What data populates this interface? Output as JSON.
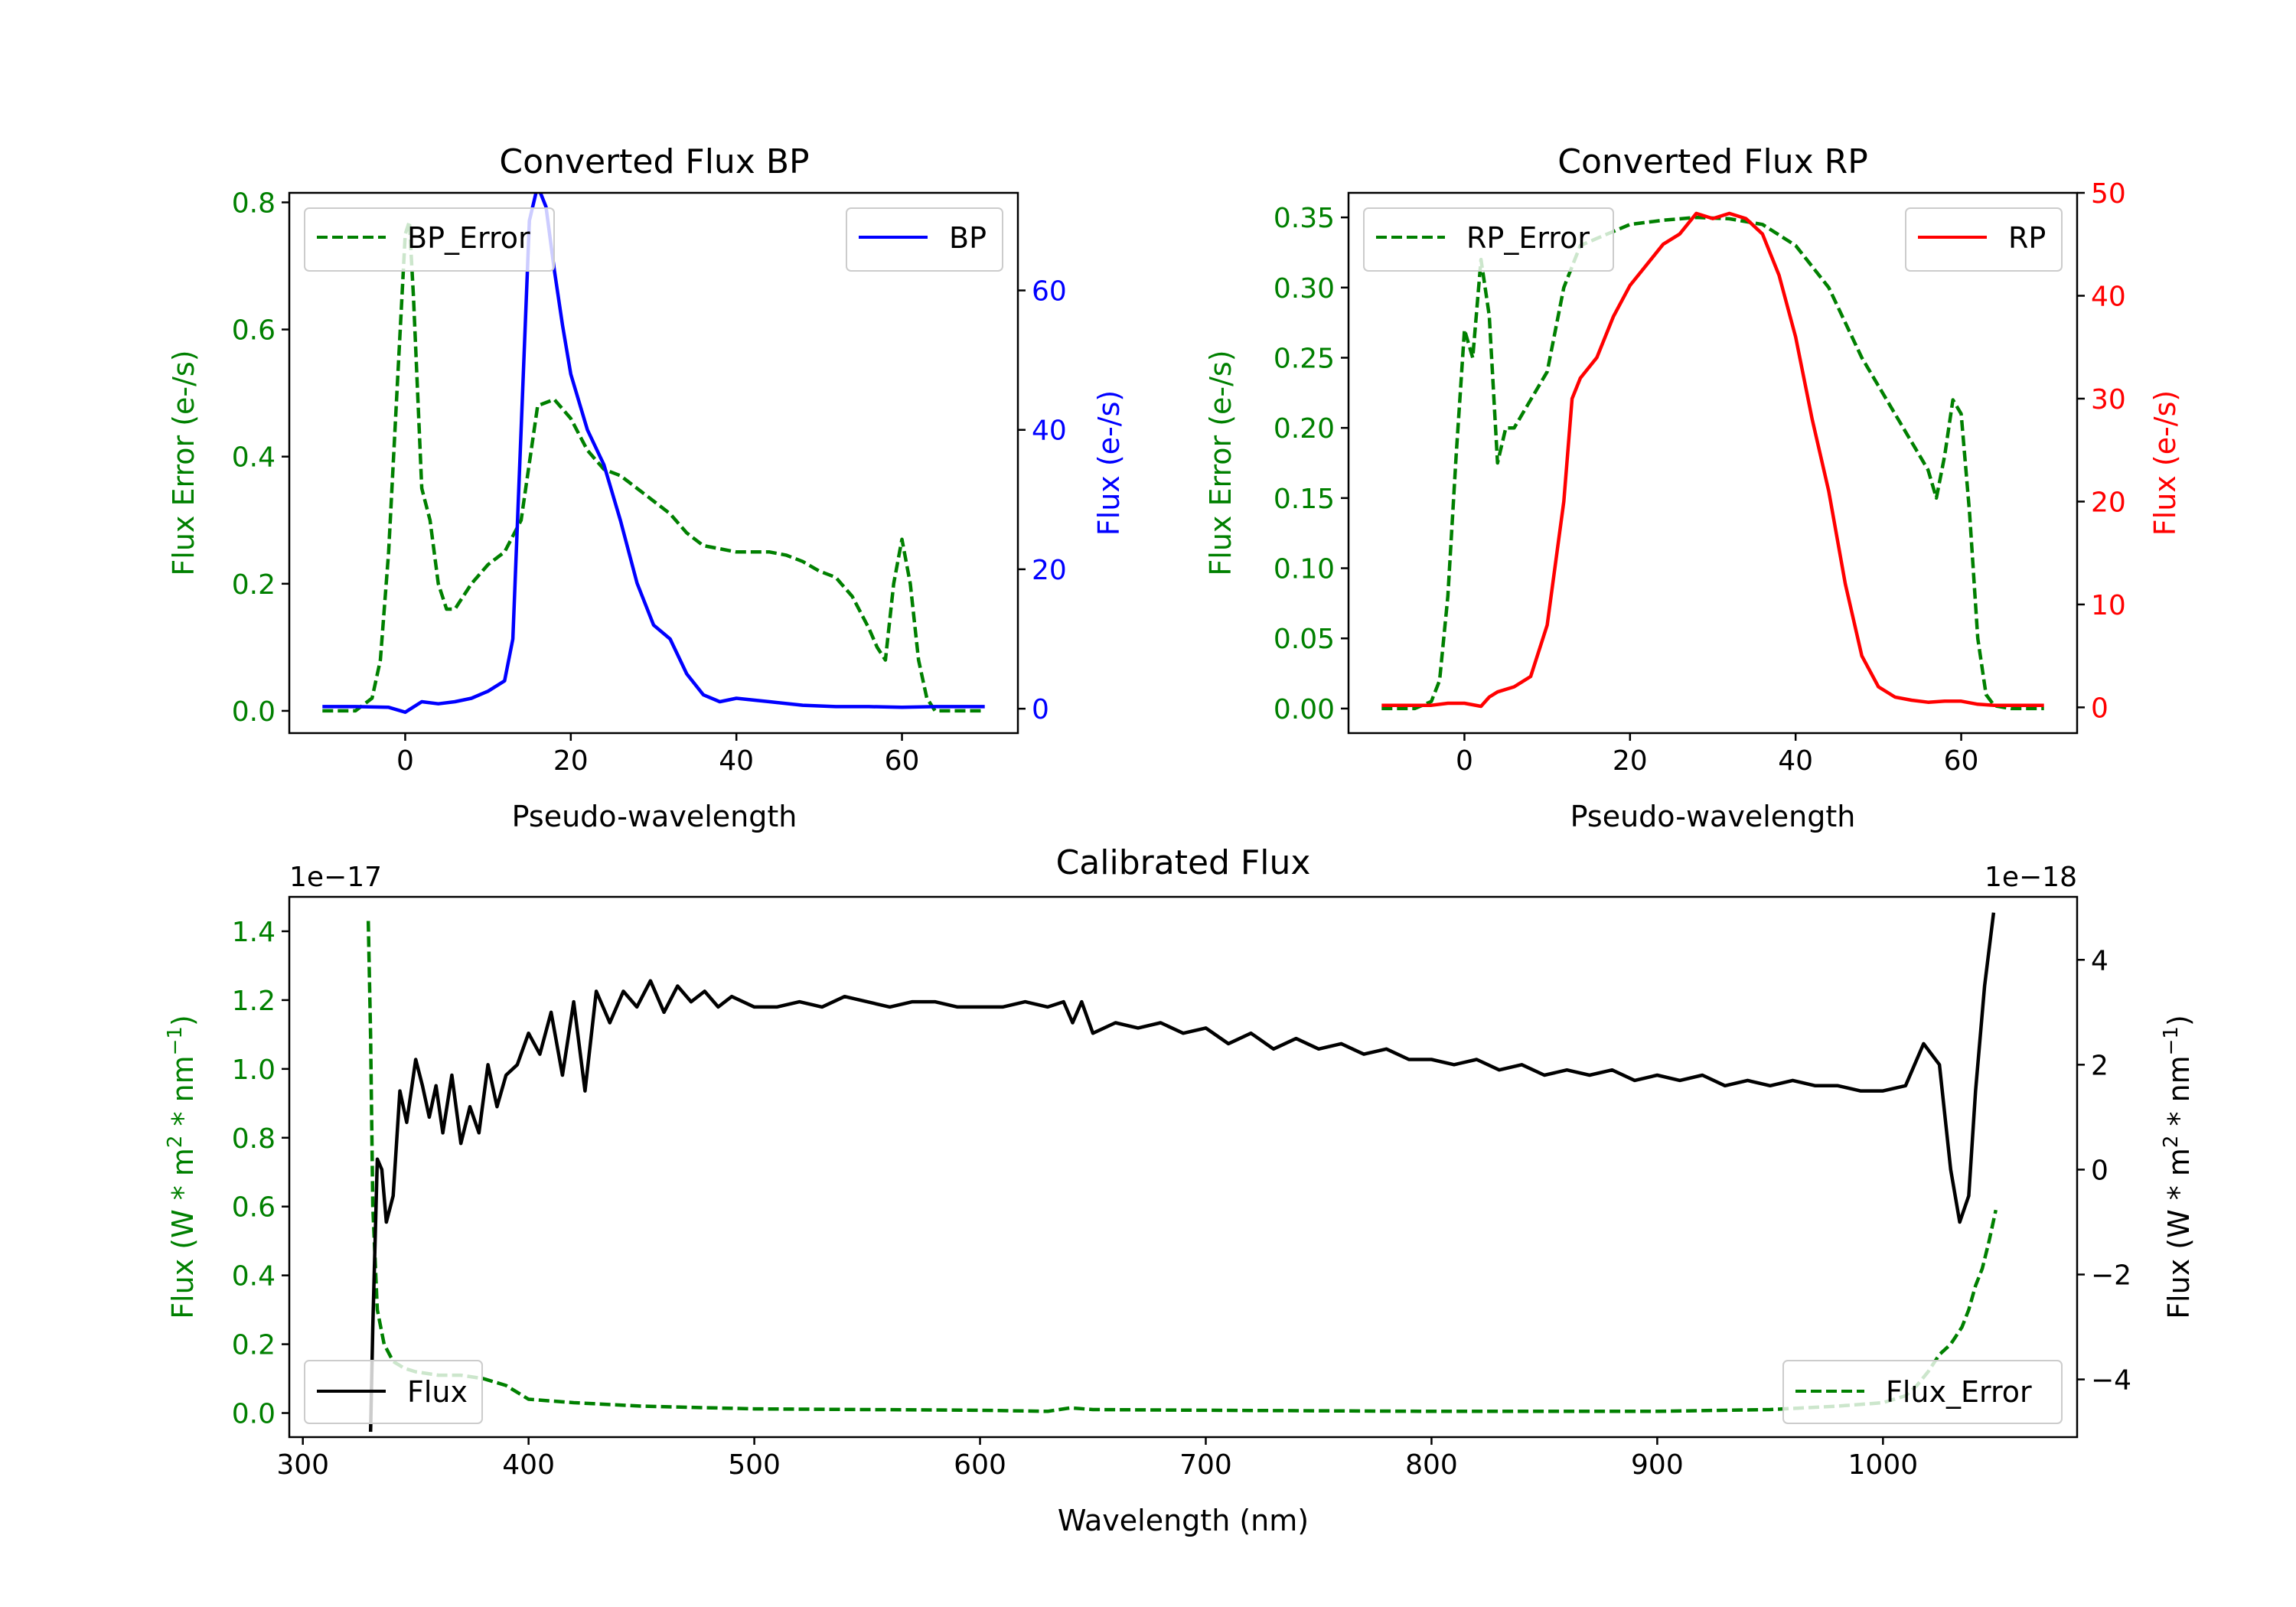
{
  "colors": {
    "error": "#008000",
    "bp": "#0000ff",
    "rp": "#ff0000",
    "flux": "#000000",
    "axis": "#000000"
  },
  "chart_data": [
    {
      "id": "bp",
      "type": "line",
      "title": "Converted Flux BP",
      "xlabel": "Pseudo-wavelength",
      "xlim": [
        -14,
        74
      ],
      "xticks": [
        0,
        20,
        40,
        60
      ],
      "left_axis": {
        "label": "Flux Error (e-/s)",
        "ylim": [
          -0.035,
          0.815
        ],
        "ticks": [
          "0.0",
          "0.2",
          "0.4",
          "0.6",
          "0.8"
        ],
        "tick_values": [
          0.0,
          0.2,
          0.4,
          0.6,
          0.8
        ]
      },
      "right_axis": {
        "label": "Flux (e-/s)",
        "ylim": [
          -3.5,
          74
        ],
        "ticks": [
          "0",
          "20",
          "40",
          "60"
        ],
        "tick_values": [
          0,
          20,
          40,
          60
        ]
      },
      "series": [
        {
          "name": "BP_Error",
          "axis": "left",
          "style": "dashed",
          "color_key": "error",
          "x": [
            -10,
            -6,
            -4,
            -3,
            -2,
            -1,
            0,
            0.5,
            1,
            2,
            3,
            4,
            5,
            6,
            8,
            10,
            12,
            14,
            16,
            18,
            20,
            22,
            24,
            26,
            28,
            30,
            32,
            34,
            36,
            38,
            40,
            42,
            44,
            46,
            48,
            50,
            52,
            54,
            56,
            57,
            58,
            59,
            60,
            61,
            62,
            63,
            64,
            66,
            68,
            70
          ],
          "y": [
            0.0,
            0.0,
            0.02,
            0.08,
            0.25,
            0.5,
            0.75,
            0.77,
            0.65,
            0.35,
            0.3,
            0.2,
            0.16,
            0.16,
            0.2,
            0.23,
            0.25,
            0.3,
            0.48,
            0.49,
            0.46,
            0.41,
            0.38,
            0.37,
            0.35,
            0.33,
            0.31,
            0.28,
            0.26,
            0.255,
            0.25,
            0.25,
            0.25,
            0.245,
            0.235,
            0.22,
            0.21,
            0.18,
            0.13,
            0.1,
            0.08,
            0.2,
            0.27,
            0.2,
            0.08,
            0.02,
            0.0,
            0.0,
            0.0,
            0.0
          ]
        },
        {
          "name": "BP",
          "axis": "right",
          "style": "solid",
          "color_key": "bp",
          "x": [
            -10,
            -6,
            -2,
            0,
            2,
            4,
            6,
            8,
            10,
            12,
            13,
            14,
            15,
            16,
            17,
            18,
            19,
            20,
            22,
            24,
            26,
            28,
            30,
            32,
            34,
            36,
            38,
            40,
            44,
            48,
            52,
            56,
            60,
            64,
            70
          ],
          "y": [
            0.3,
            0.3,
            0.2,
            -0.5,
            1.0,
            0.7,
            1.0,
            1.5,
            2.5,
            4.0,
            10.0,
            40.0,
            70.0,
            75.0,
            72.0,
            63.0,
            55.0,
            48.0,
            40.0,
            35.0,
            27.0,
            18.0,
            12.0,
            10.0,
            5.0,
            2.0,
            1.0,
            1.5,
            1.0,
            0.5,
            0.3,
            0.3,
            0.2,
            0.3,
            0.3
          ]
        }
      ],
      "legends": [
        {
          "labels": [
            "BP_Error"
          ],
          "series": [
            "BP_Error"
          ],
          "placement": "upper-left"
        },
        {
          "labels": [
            "BP"
          ],
          "series": [
            "BP"
          ],
          "placement": "upper-right"
        }
      ]
    },
    {
      "id": "rp",
      "type": "line",
      "title": "Converted Flux RP",
      "xlabel": "Pseudo-wavelength",
      "xlim": [
        -14,
        74
      ],
      "xticks": [
        0,
        20,
        40,
        60
      ],
      "left_axis": {
        "label": "Flux Error (e-/s)",
        "ylim": [
          -0.0175,
          0.3675
        ],
        "ticks": [
          "0.00",
          "0.05",
          "0.10",
          "0.15",
          "0.20",
          "0.25",
          "0.30",
          "0.35"
        ],
        "tick_values": [
          0.0,
          0.05,
          0.1,
          0.15,
          0.2,
          0.25,
          0.3,
          0.35
        ]
      },
      "right_axis": {
        "label": "Flux (e-/s)",
        "ylim": [
          -2.5,
          50
        ],
        "ticks": [
          "0",
          "10",
          "20",
          "30",
          "40",
          "50"
        ],
        "tick_values": [
          0,
          10,
          20,
          30,
          40,
          50
        ]
      },
      "series": [
        {
          "name": "RP_Error",
          "axis": "left",
          "style": "dashed",
          "color_key": "error",
          "x": [
            -10,
            -6,
            -4,
            -3,
            -2,
            -1,
            0,
            1,
            2,
            3,
            4,
            5,
            6,
            8,
            10,
            12,
            14,
            16,
            18,
            20,
            24,
            28,
            32,
            36,
            40,
            44,
            48,
            52,
            55,
            56,
            57,
            58,
            59,
            60,
            61,
            62,
            63,
            64,
            66,
            70
          ],
          "y": [
            0.0,
            0.0,
            0.005,
            0.02,
            0.08,
            0.18,
            0.27,
            0.25,
            0.32,
            0.28,
            0.175,
            0.2,
            0.2,
            0.22,
            0.24,
            0.3,
            0.33,
            0.335,
            0.34,
            0.345,
            0.348,
            0.35,
            0.349,
            0.345,
            0.33,
            0.3,
            0.25,
            0.21,
            0.18,
            0.17,
            0.15,
            0.18,
            0.22,
            0.21,
            0.14,
            0.05,
            0.01,
            0.002,
            0.0,
            0.0
          ]
        },
        {
          "name": "RP",
          "axis": "right",
          "style": "solid",
          "color_key": "rp",
          "x": [
            -10,
            -4,
            -2,
            0,
            2,
            3,
            4,
            6,
            8,
            10,
            12,
            13,
            14,
            15,
            16,
            18,
            20,
            22,
            24,
            26,
            28,
            30,
            32,
            34,
            36,
            38,
            40,
            42,
            44,
            46,
            48,
            50,
            52,
            54,
            56,
            58,
            60,
            62,
            64,
            66,
            70
          ],
          "y": [
            0.2,
            0.2,
            0.4,
            0.4,
            0.1,
            1.0,
            1.5,
            2.0,
            3.0,
            8.0,
            20.0,
            30.0,
            32.0,
            33.0,
            34.0,
            38.0,
            41.0,
            43.0,
            45.0,
            46.0,
            48.0,
            47.5,
            48.0,
            47.5,
            46.0,
            42.0,
            36.0,
            28.0,
            21.0,
            12.0,
            5.0,
            2.0,
            1.0,
            0.7,
            0.5,
            0.6,
            0.6,
            0.3,
            0.2,
            0.2,
            0.2
          ]
        }
      ],
      "legends": [
        {
          "labels": [
            "RP_Error"
          ],
          "series": [
            "RP_Error"
          ],
          "placement": "upper-left"
        },
        {
          "labels": [
            "RP"
          ],
          "series": [
            "RP"
          ],
          "placement": "upper-right"
        }
      ]
    },
    {
      "id": "cal",
      "type": "line",
      "title": "Calibrated Flux",
      "xlabel": "Wavelength (nm)",
      "xlim": [
        294,
        1086
      ],
      "xticks": [
        300,
        400,
        500,
        600,
        700,
        800,
        900,
        1000
      ],
      "left_axis": {
        "label": "Flux (W * m$^2$ * nm$^{-1}$)",
        "offset": "1e−17",
        "ylim": [
          -0.07,
          1.5
        ],
        "ticks": [
          "0.0",
          "0.2",
          "0.4",
          "0.6",
          "0.8",
          "1.0",
          "1.2",
          "1.4"
        ],
        "tick_values": [
          0.0,
          0.2,
          0.4,
          0.6,
          0.8,
          1.0,
          1.2,
          1.4
        ]
      },
      "right_axis": {
        "label": "Flux (W * m$^2$ * nm$^{-1}$)",
        "offset": "1e−18",
        "ylim": [
          -5.1,
          5.2
        ],
        "ticks": [
          "−4",
          "−2",
          "0",
          "2",
          "4"
        ],
        "tick_values": [
          -4,
          -2,
          0,
          2,
          4
        ]
      },
      "series": [
        {
          "name": "Flux",
          "axis": "right",
          "style": "solid",
          "color_key": "flux",
          "x": [
            330,
            331,
            333,
            335,
            337,
            340,
            343,
            346,
            350,
            353,
            356,
            359,
            362,
            366,
            370,
            374,
            378,
            382,
            386,
            390,
            395,
            400,
            405,
            410,
            415,
            420,
            425,
            430,
            436,
            442,
            448,
            454,
            460,
            466,
            472,
            478,
            484,
            490,
            500,
            510,
            520,
            530,
            540,
            550,
            560,
            570,
            580,
            590,
            600,
            610,
            620,
            630,
            637,
            641,
            645,
            650,
            660,
            670,
            680,
            690,
            700,
            710,
            720,
            730,
            740,
            750,
            760,
            770,
            780,
            790,
            800,
            810,
            820,
            830,
            840,
            850,
            860,
            870,
            880,
            890,
            900,
            910,
            920,
            930,
            940,
            950,
            960,
            970,
            980,
            990,
            1000,
            1010,
            1018,
            1025,
            1030,
            1034,
            1038,
            1041,
            1045,
            1049
          ],
          "y": [
            -5.0,
            -3.0,
            0.2,
            0.0,
            -1.0,
            -0.5,
            1.5,
            0.9,
            2.1,
            1.6,
            1.0,
            1.6,
            0.7,
            1.8,
            0.5,
            1.2,
            0.7,
            2.0,
            1.2,
            1.8,
            2.0,
            2.6,
            2.2,
            3.0,
            1.8,
            3.2,
            1.5,
            3.4,
            2.8,
            3.4,
            3.1,
            3.6,
            3.0,
            3.5,
            3.2,
            3.4,
            3.1,
            3.3,
            3.1,
            3.1,
            3.2,
            3.1,
            3.3,
            3.2,
            3.1,
            3.2,
            3.2,
            3.1,
            3.1,
            3.1,
            3.2,
            3.1,
            3.2,
            2.8,
            3.2,
            2.6,
            2.8,
            2.7,
            2.8,
            2.6,
            2.7,
            2.4,
            2.6,
            2.3,
            2.5,
            2.3,
            2.4,
            2.2,
            2.3,
            2.1,
            2.1,
            2.0,
            2.1,
            1.9,
            2.0,
            1.8,
            1.9,
            1.8,
            1.9,
            1.7,
            1.8,
            1.7,
            1.8,
            1.6,
            1.7,
            1.6,
            1.7,
            1.6,
            1.6,
            1.5,
            1.5,
            1.6,
            2.4,
            2.0,
            0.0,
            -1.0,
            -0.5,
            1.5,
            3.5,
            4.9
          ]
        },
        {
          "name": "Flux_Error",
          "axis": "left",
          "style": "dashed",
          "color_key": "error",
          "x": [
            329,
            330,
            331,
            333,
            336,
            340,
            345,
            350,
            360,
            370,
            380,
            390,
            400,
            420,
            450,
            500,
            550,
            600,
            630,
            640,
            650,
            700,
            800,
            900,
            950,
            980,
            1000,
            1010,
            1015,
            1020,
            1025,
            1030,
            1035,
            1038,
            1041,
            1044,
            1047,
            1050
          ],
          "y": [
            1.43,
            1.1,
            0.6,
            0.3,
            0.2,
            0.15,
            0.13,
            0.12,
            0.11,
            0.11,
            0.1,
            0.08,
            0.04,
            0.03,
            0.02,
            0.012,
            0.01,
            0.008,
            0.005,
            0.015,
            0.01,
            0.008,
            0.005,
            0.005,
            0.01,
            0.02,
            0.03,
            0.05,
            0.08,
            0.12,
            0.17,
            0.2,
            0.25,
            0.3,
            0.37,
            0.42,
            0.5,
            0.59
          ]
        }
      ],
      "legends": [
        {
          "labels": [
            "Flux"
          ],
          "series": [
            "Flux"
          ],
          "placement": "lower-left"
        },
        {
          "labels": [
            "Flux_Error"
          ],
          "series": [
            "Flux_Error"
          ],
          "placement": "lower-right"
        }
      ]
    }
  ]
}
